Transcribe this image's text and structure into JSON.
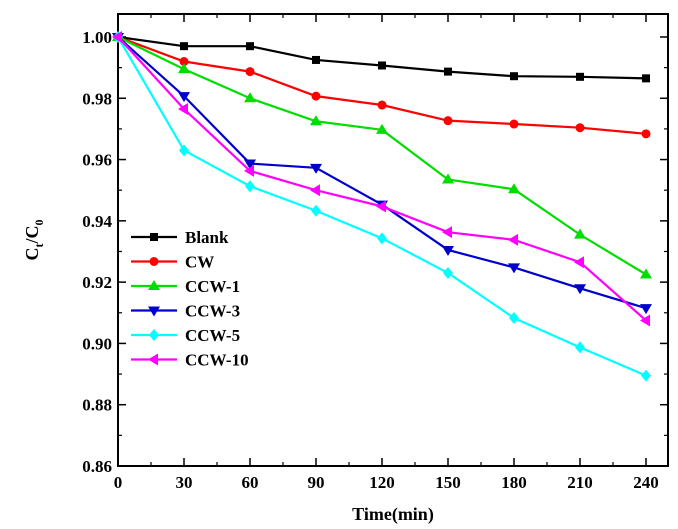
{
  "chart_data": {
    "type": "line",
    "title": "",
    "xlabel": "Time(min)",
    "ylabel_main": "C",
    "ylabel_sub1": "t",
    "ylabel_mid": "/C",
    "ylabel_sub2": "0",
    "xlim": [
      0,
      250
    ],
    "ylim": [
      0.86,
      1.0075
    ],
    "x": [
      0,
      30,
      60,
      90,
      120,
      150,
      180,
      210,
      240
    ],
    "x_ticks": [
      0,
      30,
      60,
      90,
      120,
      150,
      180,
      210,
      240
    ],
    "x_tick_labels": [
      "0",
      "30",
      "60",
      "90",
      "120",
      "150",
      "180",
      "210",
      "240"
    ],
    "y_ticks": [
      0.86,
      0.88,
      0.9,
      0.92,
      0.94,
      0.96,
      0.98,
      1.0
    ],
    "y_tick_labels": [
      "0.86",
      "0.88",
      "0.90",
      "0.92",
      "0.94",
      "0.96",
      "0.98",
      "1.00"
    ],
    "grid": false,
    "legend_position": "left",
    "series": [
      {
        "name": "Blank",
        "color": "#000000",
        "marker": "square",
        "values": [
          1.0,
          0.997,
          0.997,
          0.9925,
          0.9907,
          0.9887,
          0.9872,
          0.987,
          0.9865
        ]
      },
      {
        "name": "CW",
        "color": "#ff0000",
        "marker": "circle",
        "values": [
          1.0,
          0.992,
          0.9887,
          0.9807,
          0.9778,
          0.9727,
          0.9716,
          0.9704,
          0.9684
        ]
      },
      {
        "name": "CCW-1",
        "color": "#00dd00",
        "marker": "triangle-up",
        "values": [
          1.0,
          0.9895,
          0.98,
          0.9725,
          0.9697,
          0.9535,
          0.9503,
          0.9355,
          0.9225
        ]
      },
      {
        "name": "CCW-3",
        "color": "#0000cc",
        "marker": "triangle-down",
        "values": [
          1.0,
          0.9807,
          0.9587,
          0.9573,
          0.9453,
          0.9305,
          0.9248,
          0.918,
          0.9115
        ]
      },
      {
        "name": "CCW-5",
        "color": "#00ffff",
        "marker": "diamond",
        "values": [
          1.0,
          0.963,
          0.9513,
          0.9433,
          0.9343,
          0.923,
          0.9083,
          0.8987,
          0.8895
        ]
      },
      {
        "name": "CCW-10",
        "color": "#ff00ff",
        "marker": "triangle-left",
        "values": [
          1.0,
          0.9765,
          0.9563,
          0.95,
          0.9447,
          0.9363,
          0.9338,
          0.9265,
          0.9075
        ]
      }
    ]
  }
}
